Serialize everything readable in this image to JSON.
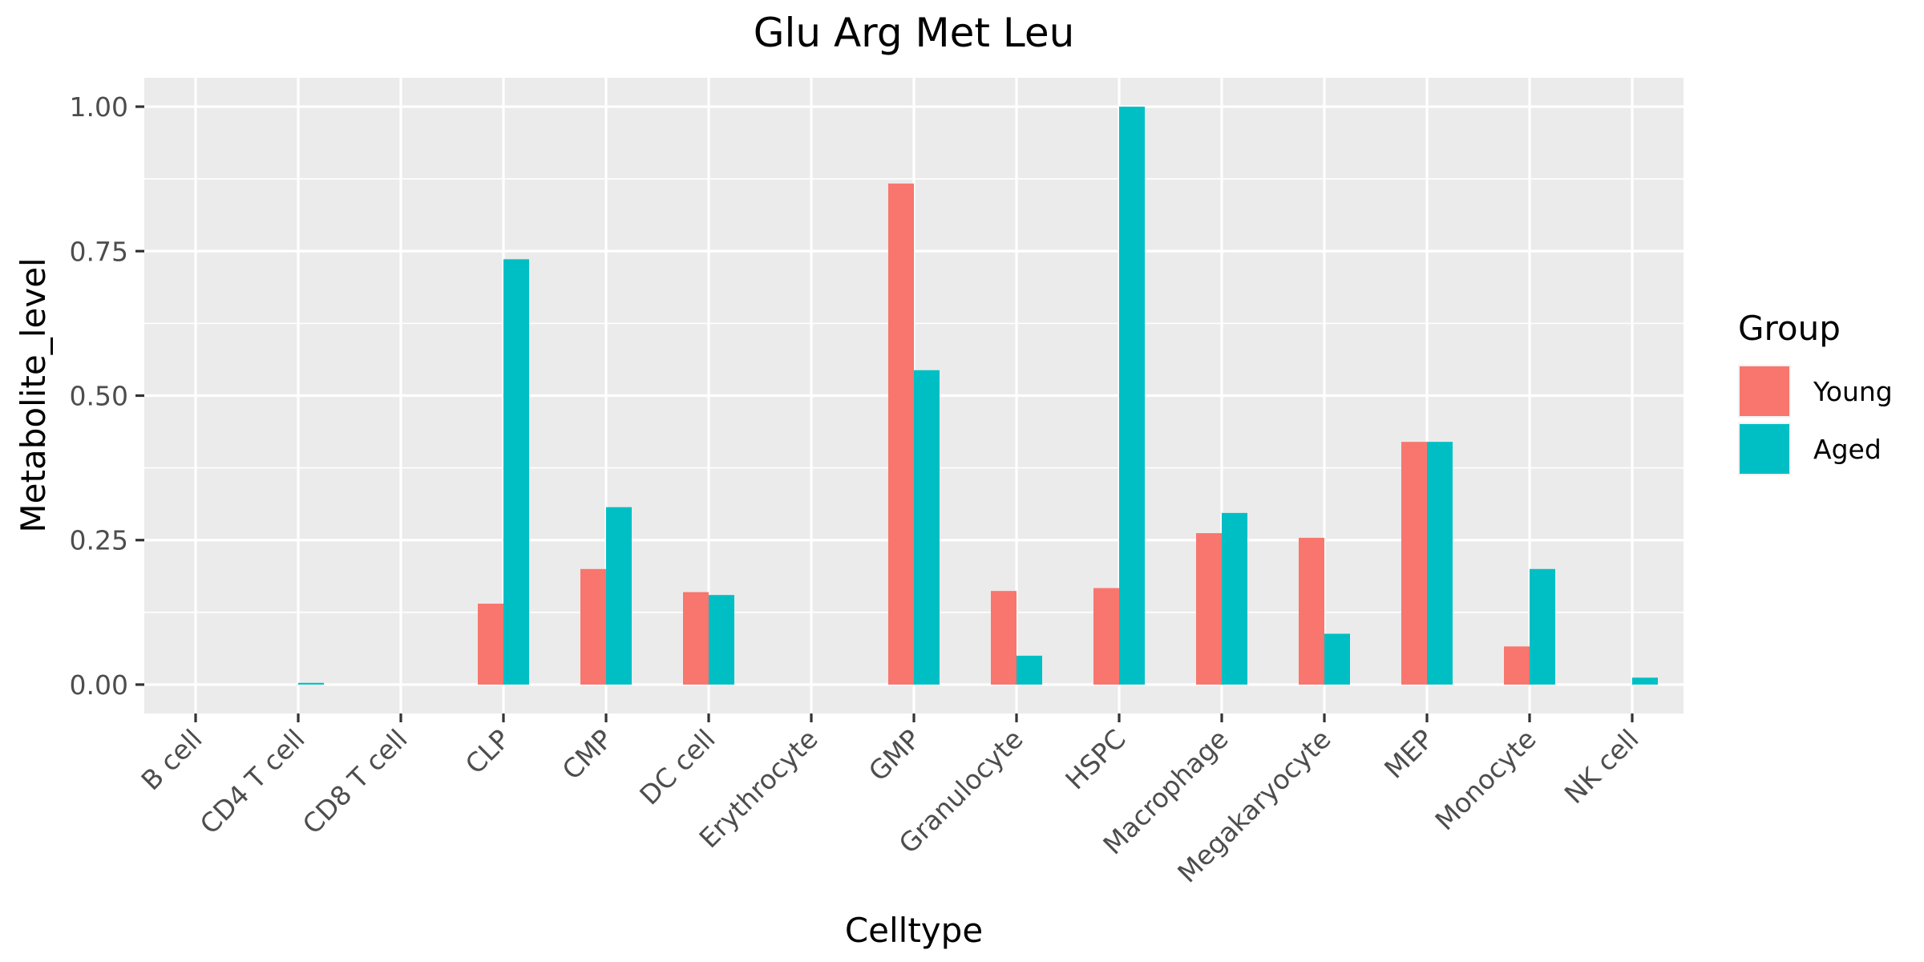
{
  "chart_data": {
    "type": "bar",
    "title": "Glu Arg Met Leu",
    "xlabel": "Celltype",
    "ylabel": "Metabolite_level",
    "categories": [
      "B cell",
      "CD4 T cell",
      "CD8 T cell",
      "CLP",
      "CMP",
      "DC cell",
      "Erythrocyte",
      "GMP",
      "Granulocyte",
      "HSPC",
      "Macrophage",
      "Megakaryocyte",
      "MEP",
      "Monocyte",
      "NK cell"
    ],
    "series": [
      {
        "name": "Young",
        "color": "#F8766D",
        "values": [
          0,
          0,
          0,
          0.14,
          0.2,
          0.16,
          0,
          0.867,
          0.162,
          0.167,
          0.262,
          0.254,
          0.42,
          0.066,
          0
        ]
      },
      {
        "name": "Aged",
        "color": "#00BFC4",
        "values": [
          0,
          0.003,
          0,
          0.736,
          0.307,
          0.155,
          0,
          0.544,
          0.05,
          1.0,
          0.297,
          0.088,
          0.42,
          0.2,
          0.012
        ]
      }
    ],
    "ylim": [
      -0.05,
      1.05
    ],
    "yticks": [
      0,
      0.25,
      0.5,
      0.75,
      1.0
    ],
    "ytick_labels": [
      "0.00",
      "0.25",
      "0.50",
      "0.75",
      "1.00"
    ],
    "legend": {
      "title": "Group",
      "position": "right"
    },
    "grid": true,
    "panel_background": "#EBEBEB",
    "grid_color": "#FFFFFF"
  }
}
